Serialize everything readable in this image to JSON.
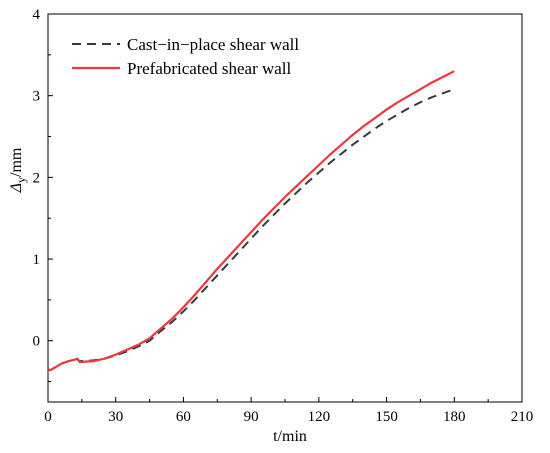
{
  "chart_data": {
    "type": "line",
    "title": "",
    "xlabel": "t/min",
    "ylabel_main": "Δ",
    "ylabel_sub": "y",
    "ylabel_unit": "/mm",
    "xlim": [
      0,
      210
    ],
    "ylim": [
      -0.75,
      4
    ],
    "xticks": [
      0,
      30,
      60,
      90,
      120,
      150,
      180,
      210
    ],
    "yticks": [
      0,
      1,
      2,
      3,
      4
    ],
    "grid": false,
    "legend_position": "top-left",
    "series": [
      {
        "name": "Cast−in−place  shear wall",
        "color": "#3a3a3a",
        "style": "dashed",
        "x": [
          0,
          1,
          3,
          6,
          9,
          12,
          13,
          14,
          20,
          25,
          30,
          35,
          40,
          45,
          50,
          55,
          60,
          65,
          70,
          75,
          80,
          85,
          90,
          95,
          100,
          105,
          110,
          115,
          120,
          125,
          130,
          135,
          140,
          145,
          150,
          155,
          160,
          165,
          170,
          175,
          180
        ],
        "y": [
          -0.35,
          -0.36,
          -0.33,
          -0.28,
          -0.25,
          -0.23,
          -0.22,
          -0.25,
          -0.24,
          -0.22,
          -0.18,
          -0.13,
          -0.07,
          0.0,
          0.12,
          0.23,
          0.36,
          0.5,
          0.65,
          0.8,
          0.95,
          1.1,
          1.25,
          1.4,
          1.54,
          1.68,
          1.81,
          1.94,
          2.06,
          2.18,
          2.29,
          2.4,
          2.5,
          2.6,
          2.69,
          2.77,
          2.85,
          2.92,
          2.98,
          3.03,
          3.08
        ]
      },
      {
        "name": "Prefabricated  shear wall",
        "color": "#e8393f",
        "style": "solid",
        "x": [
          0,
          1,
          3,
          6,
          9,
          12,
          13,
          14,
          20,
          25,
          30,
          35,
          40,
          45,
          50,
          55,
          60,
          65,
          70,
          75,
          80,
          85,
          90,
          95,
          100,
          105,
          110,
          115,
          120,
          125,
          130,
          135,
          140,
          145,
          150,
          155,
          160,
          165,
          170,
          175,
          180
        ],
        "y": [
          -0.35,
          -0.36,
          -0.33,
          -0.28,
          -0.25,
          -0.23,
          -0.22,
          -0.26,
          -0.25,
          -0.22,
          -0.17,
          -0.11,
          -0.05,
          0.03,
          0.15,
          0.27,
          0.41,
          0.56,
          0.72,
          0.88,
          1.03,
          1.18,
          1.33,
          1.48,
          1.62,
          1.76,
          1.89,
          2.02,
          2.15,
          2.28,
          2.4,
          2.52,
          2.63,
          2.73,
          2.83,
          2.92,
          3.0,
          3.08,
          3.16,
          3.23,
          3.3
        ]
      }
    ]
  }
}
